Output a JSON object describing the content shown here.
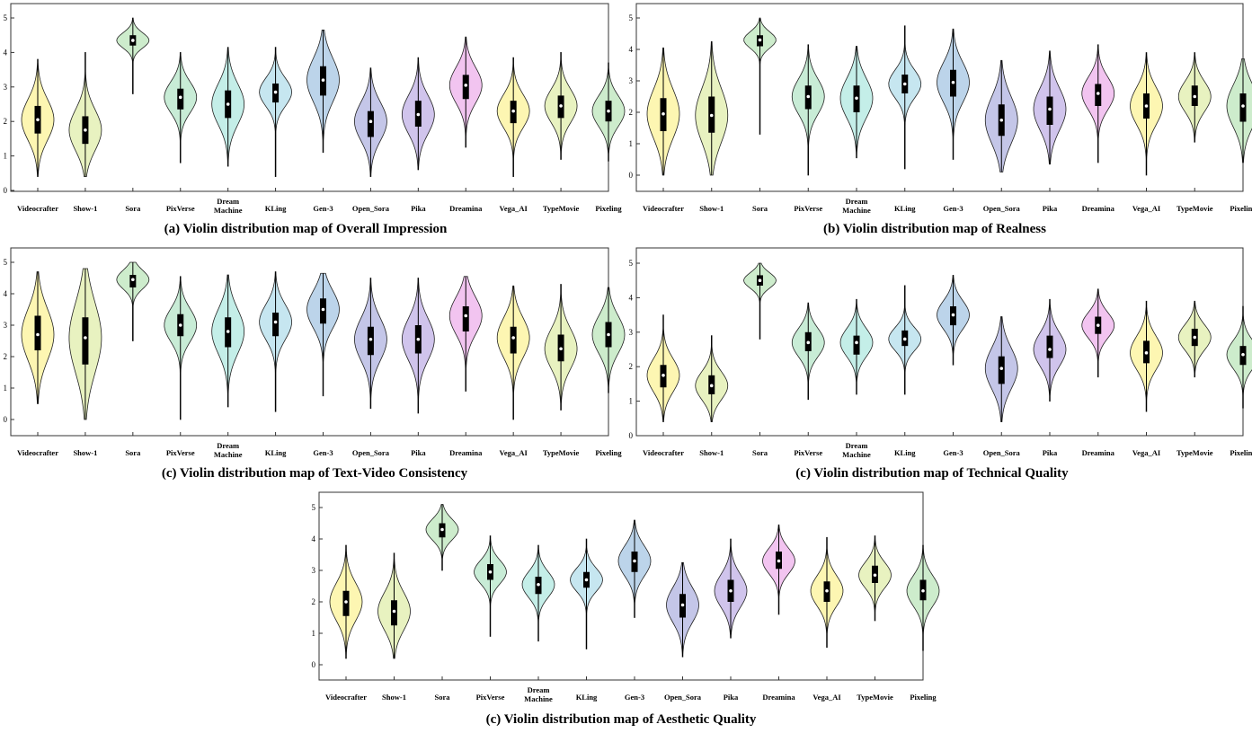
{
  "models": [
    "Videocrafter",
    "Show-1",
    "Sora",
    "PixVerse",
    "Dream Machine",
    "KLing",
    "Gen-3",
    "Open_Sora",
    "Pika",
    "Dreamina",
    "Vega_AI",
    "TypeMovie",
    "Pixeling"
  ],
  "colors": [
    "#fdf6b2",
    "#e8f2c0",
    "#cdeccc",
    "#c8ecd6",
    "#c4eee8",
    "#c6e6f0",
    "#bcd4ea",
    "#c4c6e8",
    "#d0c4ec",
    "#f2c4f0",
    "#fdf6b2",
    "#e8f2c0",
    "#cdeccc"
  ],
  "chart_data": [
    {
      "type": "violin",
      "title": "(a) Violin distribution map of Overall Impression",
      "yticks": [
        0,
        1,
        2,
        3,
        4,
        5
      ],
      "ylim": [
        0,
        5
      ],
      "series": [
        {
          "category": "Videocrafter",
          "min": 0.4,
          "q1": 1.65,
          "median": 2.05,
          "q3": 2.45,
          "max": 3.8
        },
        {
          "category": "Show-1",
          "min": 0.4,
          "q1": 1.35,
          "median": 1.75,
          "q3": 2.15,
          "max": 4.0
        },
        {
          "category": "Sora",
          "min": 2.8,
          "q1": 4.2,
          "median": 4.35,
          "q3": 4.5,
          "max": 5.0
        },
        {
          "category": "PixVerse",
          "min": 0.8,
          "q1": 2.35,
          "median": 2.7,
          "q3": 2.95,
          "max": 4.0
        },
        {
          "category": "Dream Machine",
          "min": 0.7,
          "q1": 2.1,
          "median": 2.5,
          "q3": 2.9,
          "max": 4.15
        },
        {
          "category": "KLing",
          "min": 0.4,
          "q1": 2.55,
          "median": 2.85,
          "q3": 3.1,
          "max": 4.15
        },
        {
          "category": "Gen-3",
          "min": 1.1,
          "q1": 2.75,
          "median": 3.2,
          "q3": 3.6,
          "max": 4.65
        },
        {
          "category": "Open_Sora",
          "min": 0.4,
          "q1": 1.55,
          "median": 2.0,
          "q3": 2.3,
          "max": 3.55
        },
        {
          "category": "Pika",
          "min": 0.6,
          "q1": 1.85,
          "median": 2.2,
          "q3": 2.6,
          "max": 3.85
        },
        {
          "category": "Dreamina",
          "min": 1.25,
          "q1": 2.65,
          "median": 3.05,
          "q3": 3.35,
          "max": 4.45
        },
        {
          "category": "Vega_AI",
          "min": 0.4,
          "q1": 1.95,
          "median": 2.3,
          "q3": 2.6,
          "max": 3.85
        },
        {
          "category": "TypeMovie",
          "min": 0.9,
          "q1": 2.1,
          "median": 2.45,
          "q3": 2.75,
          "max": 4.0
        },
        {
          "category": "Pixeling",
          "min": 0.85,
          "q1": 2.0,
          "median": 2.3,
          "q3": 2.6,
          "max": 3.7
        }
      ]
    },
    {
      "type": "violin",
      "title": "(b) Violin distribution map of Realness",
      "yticks": [
        0,
        1,
        2,
        3,
        4,
        5
      ],
      "ylim": [
        0,
        5
      ],
      "series": [
        {
          "category": "Videocrafter",
          "min": 0.0,
          "q1": 1.4,
          "median": 1.95,
          "q3": 2.45,
          "max": 4.05
        },
        {
          "category": "Show-1",
          "min": 0.0,
          "q1": 1.35,
          "median": 1.9,
          "q3": 2.5,
          "max": 4.25
        },
        {
          "category": "Sora",
          "min": 1.3,
          "q1": 4.1,
          "median": 4.3,
          "q3": 4.45,
          "max": 5.0
        },
        {
          "category": "PixVerse",
          "min": 0.0,
          "q1": 2.1,
          "median": 2.5,
          "q3": 2.85,
          "max": 4.15
        },
        {
          "category": "Dream Machine",
          "min": 0.55,
          "q1": 2.0,
          "median": 2.45,
          "q3": 2.85,
          "max": 4.1
        },
        {
          "category": "KLing",
          "min": 0.2,
          "q1": 2.6,
          "median": 2.9,
          "q3": 3.2,
          "max": 4.75
        },
        {
          "category": "Gen-3",
          "min": 0.5,
          "q1": 2.5,
          "median": 2.95,
          "q3": 3.35,
          "max": 4.65
        },
        {
          "category": "Open_Sora",
          "min": 0.1,
          "q1": 1.25,
          "median": 1.75,
          "q3": 2.25,
          "max": 3.65
        },
        {
          "category": "Pika",
          "min": 0.35,
          "q1": 1.6,
          "median": 2.1,
          "q3": 2.5,
          "max": 3.95
        },
        {
          "category": "Dreamina",
          "min": 0.4,
          "q1": 2.2,
          "median": 2.6,
          "q3": 2.9,
          "max": 4.15
        },
        {
          "category": "Vega_AI",
          "min": 0.0,
          "q1": 1.8,
          "median": 2.2,
          "q3": 2.6,
          "max": 3.9
        },
        {
          "category": "TypeMovie",
          "min": 1.05,
          "q1": 2.2,
          "median": 2.5,
          "q3": 2.85,
          "max": 3.9
        },
        {
          "category": "Pixeling",
          "min": 0.4,
          "q1": 1.7,
          "median": 2.2,
          "q3": 2.6,
          "max": 3.7
        }
      ]
    },
    {
      "type": "violin",
      "title": "(c) Violin distribution map of Text-Video Consistency",
      "yticks": [
        0,
        1,
        2,
        3,
        4,
        5
      ],
      "ylim": [
        0,
        5
      ],
      "series": [
        {
          "category": "Videocrafter",
          "min": 0.5,
          "q1": 2.2,
          "median": 2.7,
          "q3": 3.3,
          "max": 4.7
        },
        {
          "category": "Show-1",
          "min": 0.0,
          "q1": 1.75,
          "median": 2.6,
          "q3": 3.25,
          "max": 4.8
        },
        {
          "category": "Sora",
          "min": 2.5,
          "q1": 4.2,
          "median": 4.45,
          "q3": 4.6,
          "max": 5.0
        },
        {
          "category": "PixVerse",
          "min": 0.0,
          "q1": 2.65,
          "median": 3.0,
          "q3": 3.35,
          "max": 4.55
        },
        {
          "category": "Dream Machine",
          "min": 0.4,
          "q1": 2.3,
          "median": 2.8,
          "q3": 3.25,
          "max": 4.6
        },
        {
          "category": "KLing",
          "min": 0.25,
          "q1": 2.65,
          "median": 3.1,
          "q3": 3.4,
          "max": 4.7
        },
        {
          "category": "Gen-3",
          "min": 0.75,
          "q1": 3.05,
          "median": 3.5,
          "q3": 3.85,
          "max": 4.65
        },
        {
          "category": "Open_Sora",
          "min": 0.35,
          "q1": 2.05,
          "median": 2.55,
          "q3": 2.95,
          "max": 4.5
        },
        {
          "category": "Pika",
          "min": 0.2,
          "q1": 2.1,
          "median": 2.55,
          "q3": 3.0,
          "max": 4.5
        },
        {
          "category": "Dreamina",
          "min": 0.9,
          "q1": 2.8,
          "median": 3.3,
          "q3": 3.6,
          "max": 4.55
        },
        {
          "category": "Vega_AI",
          "min": 0.0,
          "q1": 2.1,
          "median": 2.6,
          "q3": 2.95,
          "max": 4.25
        },
        {
          "category": "TypeMovie",
          "min": 0.3,
          "q1": 1.85,
          "median": 2.25,
          "q3": 2.7,
          "max": 4.3
        },
        {
          "category": "Pixeling",
          "min": 0.85,
          "q1": 2.3,
          "median": 2.7,
          "q3": 3.1,
          "max": 4.2
        }
      ]
    },
    {
      "type": "violin",
      "title": "(c) Violin distribution map of Technical Quality",
      "yticks": [
        0,
        1,
        2,
        3,
        4,
        5
      ],
      "ylim": [
        0,
        5
      ],
      "series": [
        {
          "category": "Videocrafter",
          "min": 0.4,
          "q1": 1.4,
          "median": 1.75,
          "q3": 2.05,
          "max": 3.5
        },
        {
          "category": "Show-1",
          "min": 0.4,
          "q1": 1.2,
          "median": 1.45,
          "q3": 1.75,
          "max": 2.9
        },
        {
          "category": "Sora",
          "min": 2.8,
          "q1": 4.35,
          "median": 4.5,
          "q3": 4.65,
          "max": 5.0
        },
        {
          "category": "PixVerse",
          "min": 1.05,
          "q1": 2.45,
          "median": 2.7,
          "q3": 3.0,
          "max": 3.85
        },
        {
          "category": "Dream Machine",
          "min": 1.2,
          "q1": 2.35,
          "median": 2.7,
          "q3": 2.9,
          "max": 3.95
        },
        {
          "category": "KLing",
          "min": 1.2,
          "q1": 2.6,
          "median": 2.8,
          "q3": 3.05,
          "max": 4.35
        },
        {
          "category": "Gen-3",
          "min": 2.05,
          "q1": 3.2,
          "median": 3.5,
          "q3": 3.75,
          "max": 4.65
        },
        {
          "category": "Open_Sora",
          "min": 0.4,
          "q1": 1.5,
          "median": 1.95,
          "q3": 2.3,
          "max": 3.45
        },
        {
          "category": "Pika",
          "min": 1.0,
          "q1": 2.25,
          "median": 2.5,
          "q3": 2.9,
          "max": 3.95
        },
        {
          "category": "Dreamina",
          "min": 1.7,
          "q1": 2.95,
          "median": 3.2,
          "q3": 3.45,
          "max": 4.25
        },
        {
          "category": "Vega_AI",
          "min": 0.7,
          "q1": 2.1,
          "median": 2.4,
          "q3": 2.75,
          "max": 3.9
        },
        {
          "category": "TypeMovie",
          "min": 1.7,
          "q1": 2.6,
          "median": 2.85,
          "q3": 3.1,
          "max": 3.9
        },
        {
          "category": "Pixeling",
          "min": 0.8,
          "q1": 2.05,
          "median": 2.35,
          "q3": 2.6,
          "max": 3.75
        }
      ]
    },
    {
      "type": "violin",
      "title": "(c) Violin distribution map of Aesthetic Quality",
      "yticks": [
        0,
        1,
        2,
        3,
        4,
        5
      ],
      "ylim": [
        0,
        5
      ],
      "series": [
        {
          "category": "Videocrafter",
          "min": 0.2,
          "q1": 1.55,
          "median": 2.0,
          "q3": 2.35,
          "max": 3.8
        },
        {
          "category": "Show-1",
          "min": 0.2,
          "q1": 1.25,
          "median": 1.7,
          "q3": 2.05,
          "max": 3.55
        },
        {
          "category": "Sora",
          "min": 3.0,
          "q1": 4.05,
          "median": 4.3,
          "q3": 4.5,
          "max": 5.1
        },
        {
          "category": "PixVerse",
          "min": 0.9,
          "q1": 2.7,
          "median": 2.95,
          "q3": 3.2,
          "max": 4.1
        },
        {
          "category": "Dream Machine",
          "min": 0.75,
          "q1": 2.25,
          "median": 2.55,
          "q3": 2.8,
          "max": 3.8
        },
        {
          "category": "KLing",
          "min": 0.5,
          "q1": 2.45,
          "median": 2.7,
          "q3": 2.95,
          "max": 4.0
        },
        {
          "category": "Gen-3",
          "min": 1.5,
          "q1": 2.95,
          "median": 3.3,
          "q3": 3.6,
          "max": 4.6
        },
        {
          "category": "Open_Sora",
          "min": 0.25,
          "q1": 1.5,
          "median": 1.9,
          "q3": 2.25,
          "max": 3.25
        },
        {
          "category": "Pika",
          "min": 0.85,
          "q1": 2.0,
          "median": 2.35,
          "q3": 2.7,
          "max": 4.0
        },
        {
          "category": "Dreamina",
          "min": 1.6,
          "q1": 3.05,
          "median": 3.3,
          "q3": 3.6,
          "max": 4.45
        },
        {
          "category": "Vega_AI",
          "min": 0.55,
          "q1": 2.0,
          "median": 2.35,
          "q3": 2.65,
          "max": 4.05
        },
        {
          "category": "TypeMovie",
          "min": 1.4,
          "q1": 2.6,
          "median": 2.85,
          "q3": 3.15,
          "max": 4.1
        },
        {
          "category": "Pixeling",
          "min": 0.45,
          "q1": 2.05,
          "median": 2.35,
          "q3": 2.7,
          "max": 3.8
        }
      ]
    }
  ]
}
